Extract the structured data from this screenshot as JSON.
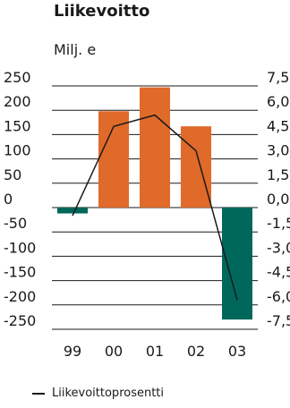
{
  "chart_data": {
    "type": "bar",
    "title": "Liikevoitto",
    "unit_label": "Milj. e",
    "categories": [
      "99",
      "00",
      "01",
      "02",
      "03"
    ],
    "series": [
      {
        "type": "bar",
        "values": [
          -12,
          198,
          247,
          167,
          -230
        ]
      },
      {
        "type": "line",
        "name": "Liikevoittoprosentti",
        "axis": "right",
        "values": [
          -0.5,
          5.0,
          5.7,
          3.5,
          -5.7
        ]
      }
    ],
    "ylim_left": [
      -250,
      250
    ],
    "ylim_right": [
      -7.5,
      7.5
    ],
    "yticks_left": [
      "250",
      "200",
      "150",
      "100",
      "50",
      "0",
      "-50",
      "-100",
      "-150",
      "-200",
      "-250"
    ],
    "yticks_right": [
      "7,5",
      "6,0",
      "4,5",
      "3,0",
      "1,5",
      "0,0",
      "-1,5",
      "-3,0",
      "-4,5",
      "-6,0",
      "-7,5"
    ],
    "grid": true,
    "legend": "bottom-left",
    "colors": {
      "bar_positive": "#e06a2a",
      "bar_negative": "#00675b",
      "line": "#1a1a1a",
      "grid": "#1a1a1a"
    }
  }
}
